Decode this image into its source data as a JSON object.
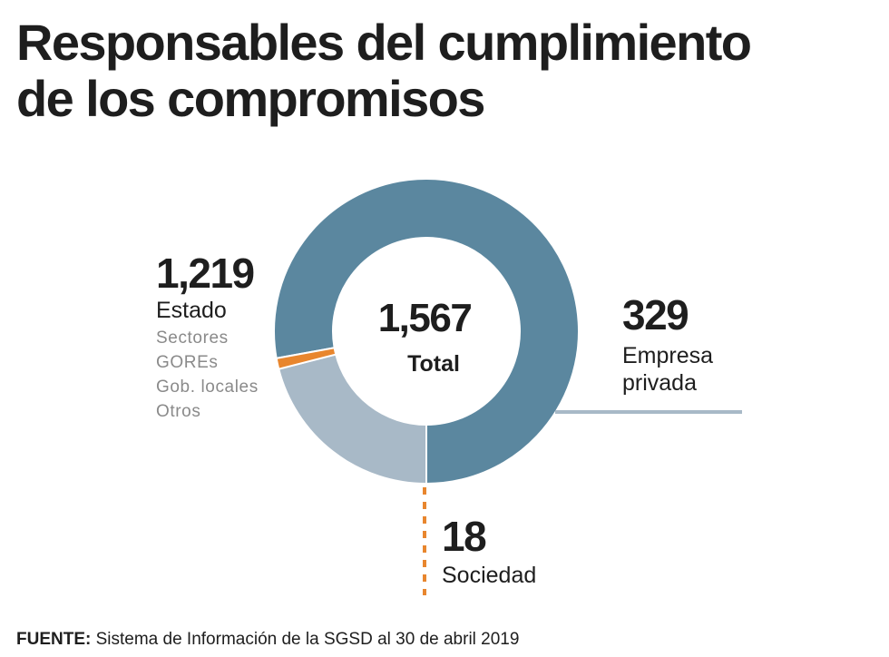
{
  "title_line1": "Responsables del cumplimiento",
  "title_line2": "de los compromisos",
  "chart_data": {
    "type": "pie",
    "title": "Responsables del cumplimiento de los compromisos",
    "total": 1567,
    "total_label": "1,567",
    "total_caption": "Total",
    "slices": [
      {
        "name": "Estado",
        "value": 1219,
        "value_label": "1,219",
        "color": "#5b879f",
        "subitems": [
          "Sectores",
          "GOREs",
          "Gob. locales",
          "Otros"
        ]
      },
      {
        "name": "Empresa privada",
        "value": 329,
        "value_label": "329",
        "color": "#a8b9c7",
        "name_lines": [
          "Empresa",
          "privada"
        ]
      },
      {
        "name": "Sociedad",
        "value": 18,
        "value_label": "18",
        "color": "#e8862e"
      }
    ]
  },
  "source": {
    "label": "FUENTE:",
    "text": "Sistema de Información de la SGSD al 30 de abril 2019"
  }
}
